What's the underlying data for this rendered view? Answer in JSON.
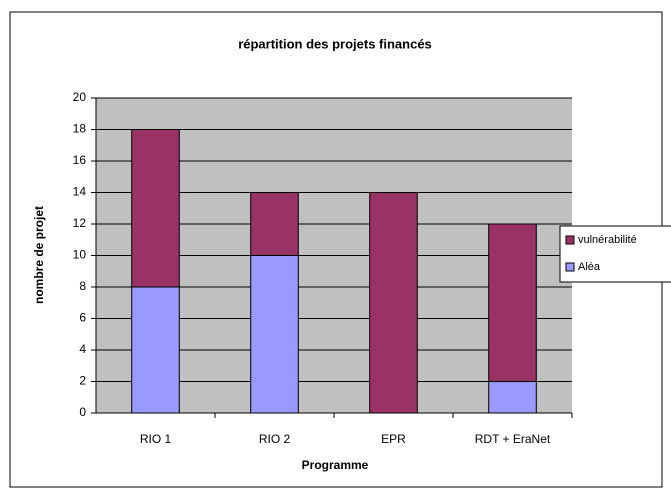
{
  "chart_data": {
    "type": "bar",
    "stacked": true,
    "title": "répartition des projets financés",
    "x_label": "Programme",
    "y_label": "nombre de projet",
    "categories": [
      "RIO 1",
      "RIO 2",
      "EPR",
      "RDT + EraNet"
    ],
    "series": [
      {
        "name": "Aléa",
        "color": "#9999ff",
        "values": [
          8,
          10,
          0,
          2
        ]
      },
      {
        "name": "vulnérabilité",
        "color": "#993366",
        "values": [
          10,
          4,
          14,
          10
        ]
      }
    ],
    "ylim": [
      0,
      20
    ],
    "yticks": [
      0,
      2,
      4,
      6,
      8,
      10,
      12,
      14,
      16,
      18,
      20
    ],
    "grid": true,
    "legend": "right"
  }
}
